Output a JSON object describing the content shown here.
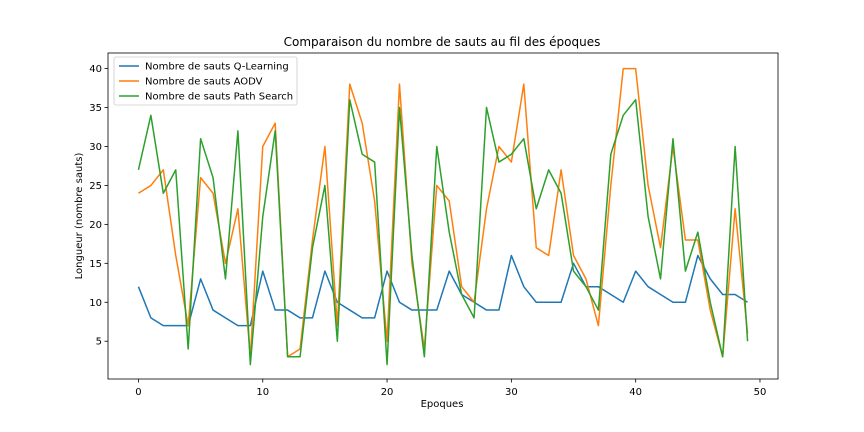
{
  "chart_data": {
    "type": "line",
    "title": "Comparaison du nombre de sauts au fil des époques",
    "xlabel": "Epoques",
    "ylabel": "Longueur (nombre sauts)",
    "xlim": [
      -2.45,
      51.45
    ],
    "ylim": [
      0.15,
      42.0
    ],
    "xticks": [
      0,
      10,
      20,
      30,
      40,
      50
    ],
    "yticks": [
      5,
      10,
      15,
      20,
      25,
      30,
      35,
      40
    ],
    "grid": false,
    "legend_position": "top-left",
    "x": [
      0,
      1,
      2,
      3,
      4,
      5,
      6,
      7,
      8,
      9,
      10,
      11,
      12,
      13,
      14,
      15,
      16,
      17,
      18,
      19,
      20,
      21,
      22,
      23,
      24,
      25,
      26,
      27,
      28,
      29,
      30,
      31,
      32,
      33,
      34,
      35,
      36,
      37,
      38,
      39,
      40,
      41,
      42,
      43,
      44,
      45,
      46,
      47,
      48,
      49
    ],
    "series": [
      {
        "name": "Nombre de sauts Q-Learning",
        "color": "#1f77b4",
        "values": [
          12,
          8,
          7,
          7,
          7,
          13,
          9,
          8,
          7,
          7,
          14,
          9,
          9,
          8,
          8,
          14,
          10,
          9,
          8,
          8,
          14,
          10,
          9,
          9,
          9,
          14,
          11,
          10,
          9,
          9,
          16,
          12,
          10,
          10,
          10,
          15,
          12,
          12,
          11,
          10,
          14,
          12,
          11,
          10,
          10,
          16,
          13,
          11,
          11,
          10
        ]
      },
      {
        "name": "Nombre de sauts AODV",
        "color": "#ff7f0e",
        "values": [
          24,
          25,
          27,
          16,
          7,
          26,
          24,
          15,
          22,
          3,
          30,
          33,
          3,
          4,
          18,
          30,
          7,
          38,
          33,
          23,
          5,
          38,
          15,
          4,
          25,
          23,
          12,
          10,
          22,
          30,
          28,
          38,
          17,
          16,
          27,
          16,
          13,
          7,
          25,
          40,
          40,
          25,
          17,
          30,
          18,
          18,
          9,
          3,
          22,
          6
        ]
      },
      {
        "name": "Nombre de sauts Path Search",
        "color": "#2ca02c",
        "values": [
          27,
          34,
          24,
          27,
          4,
          31,
          26,
          13,
          32,
          2,
          21,
          32,
          3,
          3,
          17,
          25,
          5,
          36,
          29,
          28,
          2,
          35,
          16,
          3,
          30,
          19,
          11,
          8,
          35,
          28,
          29,
          31,
          22,
          27,
          24,
          14,
          12,
          9,
          29,
          34,
          36,
          21,
          13,
          31,
          14,
          19,
          10,
          3,
          30,
          5
        ]
      }
    ]
  }
}
